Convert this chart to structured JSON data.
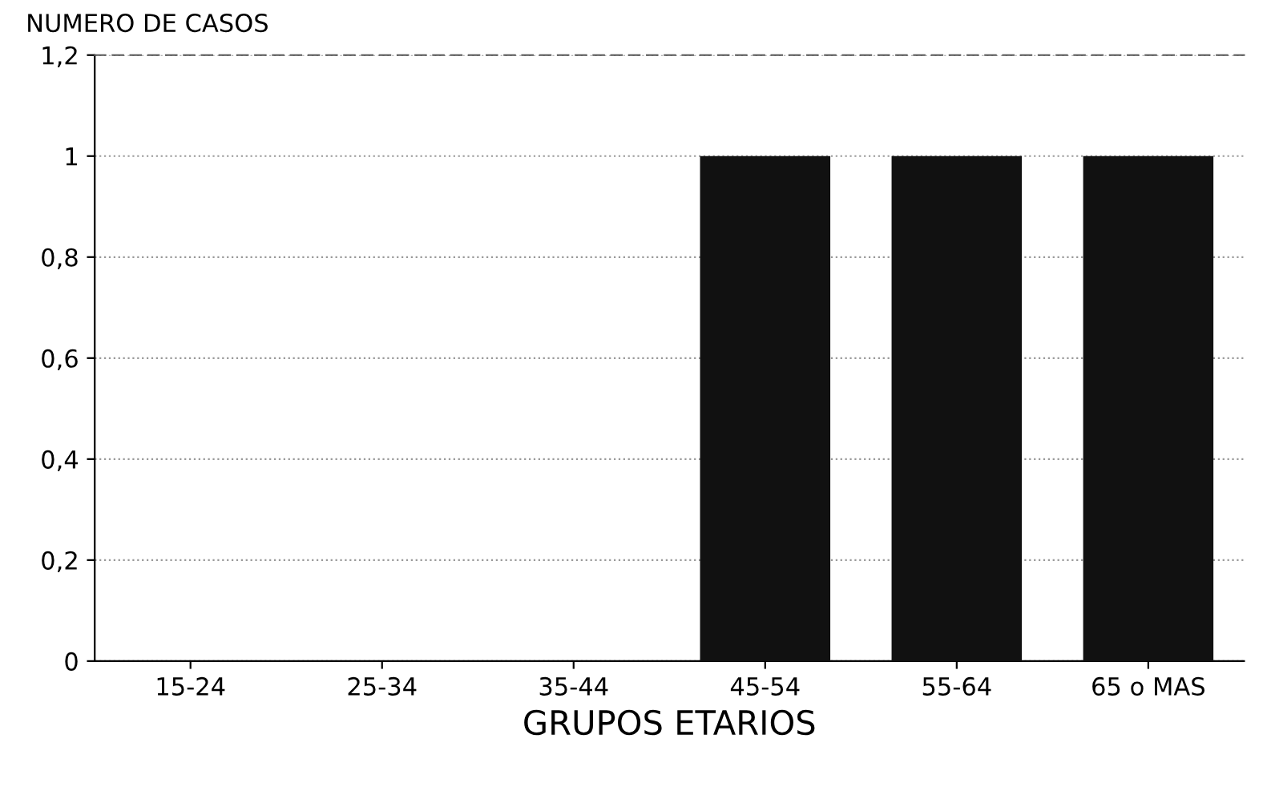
{
  "chart_data": {
    "type": "bar",
    "ylabel": "NUMERO DE CASOS",
    "xlabel": "GRUPOS ETARIOS",
    "categories": [
      "15-24",
      "25-34",
      "35-44",
      "45-54",
      "55-64",
      "65 o MAS"
    ],
    "values": [
      0,
      0,
      0,
      1,
      1,
      1
    ],
    "color": "#111111",
    "ylim": [
      0,
      1.2
    ],
    "yticks": [
      0,
      {
        "value": 0.2,
        "label": "0,2"
      },
      {
        "value": 0.4,
        "label": "0,4"
      },
      {
        "value": 0.6,
        "label": "0,6"
      },
      {
        "value": 0.8,
        "label": "0,8"
      },
      1,
      {
        "value": 1.2,
        "label": "1,2"
      }
    ],
    "grid": "y"
  }
}
